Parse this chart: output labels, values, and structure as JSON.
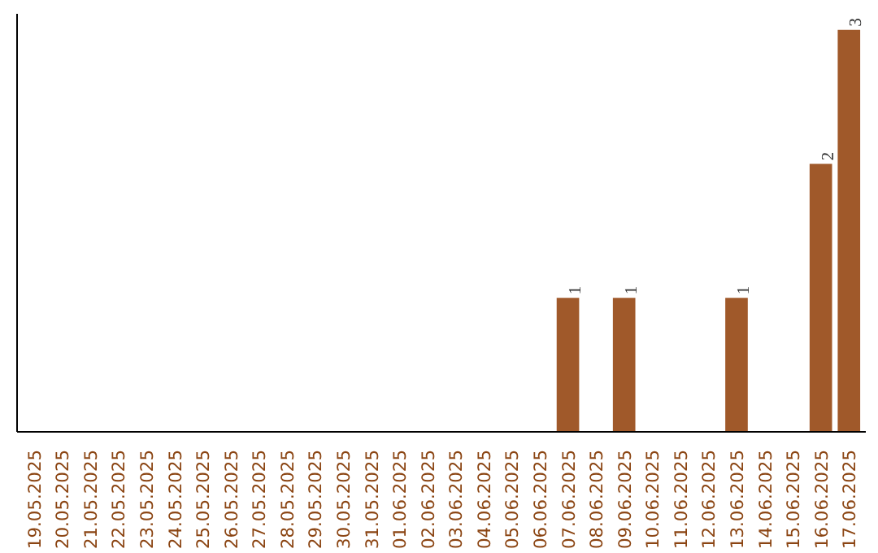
{
  "chart_data": {
    "type": "bar",
    "categories": [
      "19.05.2025",
      "20.05.2025",
      "21.05.2025",
      "22.05.2025",
      "23.05.2025",
      "24.05.2025",
      "25.05.2025",
      "26.05.2025",
      "27.05.2025",
      "28.05.2025",
      "29.05.2025",
      "30.05.2025",
      "31.05.2025",
      "01.06.2025",
      "02.06.2025",
      "03.06.2025",
      "04.06.2025",
      "05.06.2025",
      "06.06.2025",
      "07.06.2025",
      "08.06.2025",
      "09.06.2025",
      "10.06.2025",
      "11.06.2025",
      "12.06.2025",
      "13.06.2025",
      "14.06.2025",
      "15.06.2025",
      "16.06.2025",
      "17.06.2025"
    ],
    "values": [
      null,
      null,
      null,
      null,
      null,
      null,
      null,
      null,
      null,
      null,
      null,
      null,
      null,
      null,
      null,
      null,
      null,
      null,
      null,
      1,
      null,
      1,
      null,
      null,
      null,
      1,
      null,
      null,
      2,
      3
    ],
    "value_labels": [
      null,
      null,
      null,
      null,
      null,
      null,
      null,
      null,
      null,
      null,
      null,
      null,
      null,
      null,
      null,
      null,
      null,
      null,
      null,
      "1",
      null,
      "1",
      null,
      null,
      null,
      "1",
      null,
      null,
      "2",
      "3"
    ],
    "color": "#a0592a",
    "grid": false
  }
}
